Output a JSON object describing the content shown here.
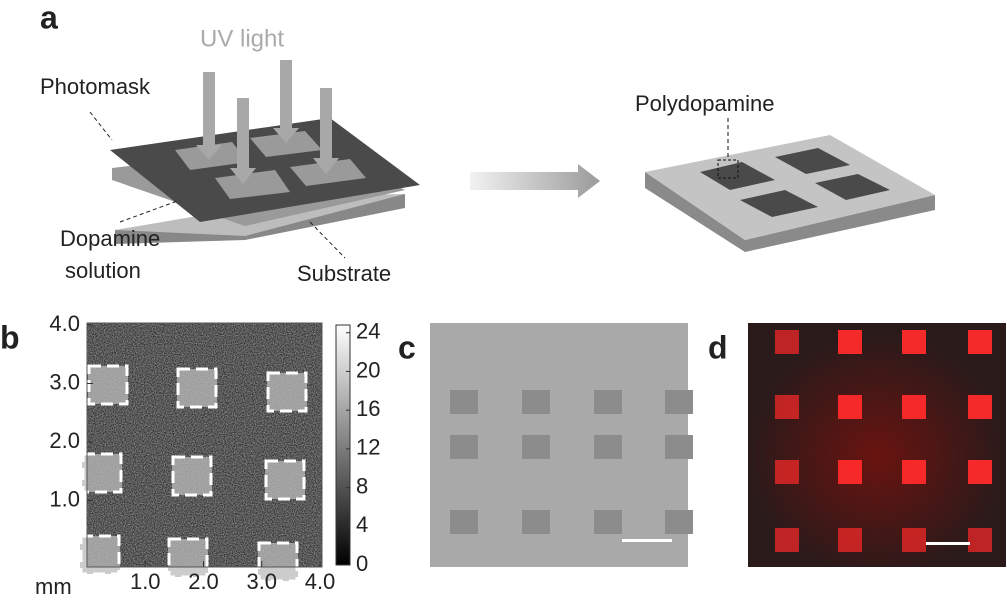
{
  "panel_a": {
    "label": "a",
    "uv_light": "UV light",
    "photomask": "Photomask",
    "dopamine_solution": [
      "Dopamine",
      "solution"
    ],
    "substrate": "Substrate",
    "polydopamine": "Polydopamine"
  },
  "panel_b": {
    "label": "b",
    "x_unit": "mm",
    "xlim": [
      0,
      4
    ],
    "ylim": [
      0,
      4
    ],
    "xticks": [
      {
        "value": 1,
        "label": "1.0"
      },
      {
        "value": 2,
        "label": "2.0"
      },
      {
        "value": 3,
        "label": "3.0"
      },
      {
        "value": 4,
        "label": "4.0"
      }
    ],
    "yticks": [
      {
        "value": 1,
        "label": "1.0"
      },
      {
        "value": 2,
        "label": "2.0"
      },
      {
        "value": 3,
        "label": "3.0"
      },
      {
        "value": 4,
        "label": "4.0"
      }
    ],
    "colorbar_lim": [
      0,
      24.8
    ],
    "colorbar_ticks": [
      0,
      4,
      8,
      12,
      16,
      20,
      24
    ]
  },
  "panel_c": {
    "label": "c"
  },
  "panel_d": {
    "label": "d"
  }
}
